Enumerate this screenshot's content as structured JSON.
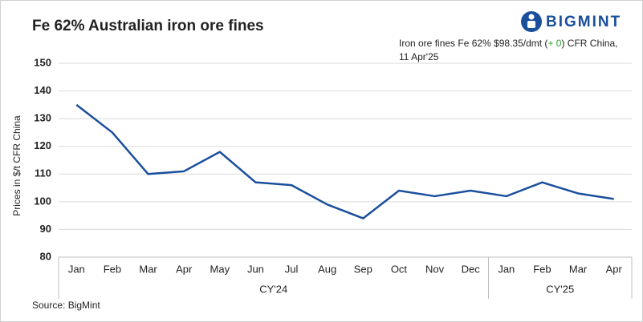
{
  "chart_data": {
    "type": "line",
    "title": "Fe 62% Australian iron ore fines",
    "annotation": {
      "before": "Iron ore fines Fe 62% $98.35/dmt (",
      "change": "+ 0",
      "after": ") CFR China, 11 Apr'25"
    },
    "y_label": "Prices in $/t CFR China",
    "groups": [
      {
        "label": "CY'24",
        "categories": [
          "Jan",
          "Feb",
          "Mar",
          "Apr",
          "May",
          "Jun",
          "Jul",
          "Aug",
          "Sep",
          "Oct",
          "Nov",
          "Dec"
        ]
      },
      {
        "label": "CY'25",
        "categories": [
          "Jan",
          "Feb",
          "Mar",
          "Apr"
        ]
      }
    ],
    "series": [
      {
        "name": "Fe 62% Australian iron ore fines",
        "color": "#1a4f9c",
        "values": [
          135,
          125,
          110,
          111,
          118,
          107,
          106,
          99,
          94,
          104,
          102,
          104,
          102,
          107,
          103,
          101
        ]
      }
    ],
    "ylim": [
      80,
      150
    ],
    "yticks": [
      80,
      90,
      100,
      110,
      120,
      130,
      140,
      150
    ],
    "grid": true
  },
  "logo": "BIGMINT",
  "source": "Source: BigMint"
}
